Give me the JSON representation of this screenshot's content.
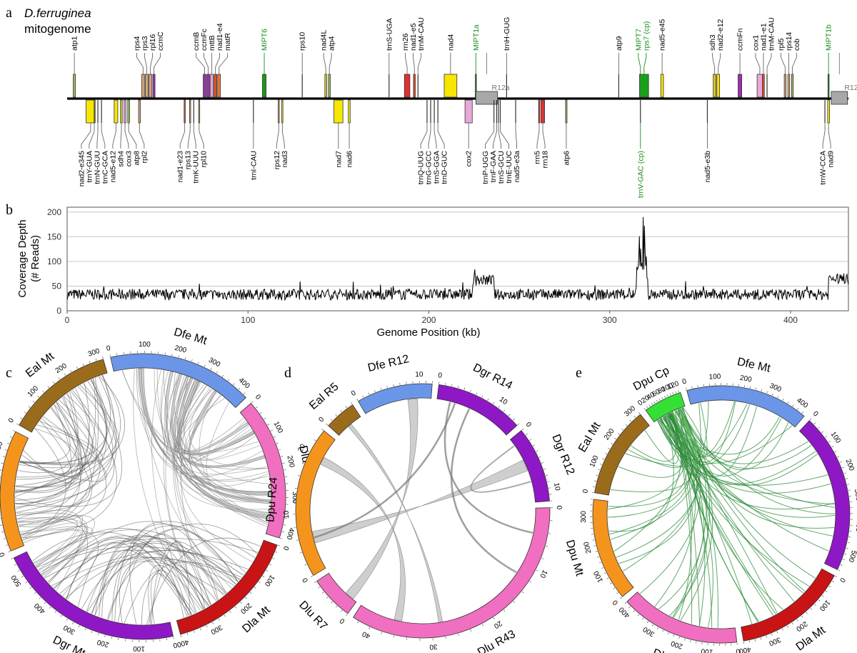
{
  "panels": {
    "a": {
      "label": "a",
      "title_species": "D.ferruginea",
      "title_suffix": "mitogenome",
      "genome_length_kb": 432,
      "features": [
        {
          "name": "atp1",
          "pos": 4,
          "strand": "+",
          "color": "#9bbb59",
          "w": 1.2
        },
        {
          "name": "rps4",
          "pos": 42,
          "strand": "+",
          "color": "#d9a57a",
          "w": 1.5
        },
        {
          "name": "rps3",
          "pos": 44,
          "strand": "+",
          "color": "#d9a57a",
          "w": 1.5
        },
        {
          "name": "rpl16",
          "pos": 46,
          "strand": "+",
          "color": "#d9a57a",
          "w": 1.5
        },
        {
          "name": "ccmC",
          "pos": 48,
          "strand": "+",
          "color": "#9b2fae",
          "w": 1.2
        },
        {
          "name": "ccmB",
          "pos": 76,
          "strand": "+",
          "color": "#9b2fae",
          "w": 1.5
        },
        {
          "name": "ccmFc",
          "pos": 78,
          "strand": "+",
          "color": "#9b2fae",
          "w": 1.5
        },
        {
          "name": "mttB",
          "pos": 80,
          "strand": "+",
          "color": "#e9a9d8",
          "w": 1.5
        },
        {
          "name": "nad1-e4",
          "pos": 82,
          "strand": "+",
          "color": "#e84a1e",
          "w": 1.5
        },
        {
          "name": "matR",
          "pos": 84,
          "strand": "+",
          "color": "#ed7d31",
          "w": 1.5
        },
        {
          "name": "MIPT6",
          "pos": 109,
          "strand": "+",
          "color": "#1a9a1a",
          "w": 2,
          "green": true
        },
        {
          "name": "rps10",
          "pos": 130,
          "strand": "+",
          "color": "#555555",
          "w": 0.2
        },
        {
          "name": "nad4L",
          "pos": 143,
          "strand": "+",
          "color": "#d9c820",
          "w": 1
        },
        {
          "name": "atp4",
          "pos": 145,
          "strand": "+",
          "color": "#9bbb59",
          "w": 1
        },
        {
          "name": "trnS-UGA",
          "pos": 178,
          "strand": "+",
          "color": "#555555",
          "w": 0.2
        },
        {
          "name": "rrn26",
          "pos": 188,
          "strand": "+",
          "color": "#e03030",
          "w": 3
        },
        {
          "name": "nad1-e5",
          "pos": 192,
          "strand": "+",
          "color": "#e84a1e",
          "w": 1
        },
        {
          "name": "trnM-CAU",
          "pos": 194,
          "strand": "+",
          "color": "#555555",
          "w": 0.2
        },
        {
          "name": "nad4",
          "pos": 212,
          "strand": "+",
          "color": "#f7e600",
          "w": 7
        },
        {
          "name": "MIPT1a",
          "pos": 226,
          "strand": "+",
          "color": "#1a9a1a",
          "w": 0.6,
          "green": true
        },
        {
          "name": "R12a",
          "pos": 232,
          "strand": "+",
          "color": "#9a9a9a",
          "w": 12,
          "gray": true
        },
        {
          "name": "trnH-GUG",
          "pos": 243,
          "strand": "+",
          "color": "#555555",
          "w": 0.2
        },
        {
          "name": "atp9",
          "pos": 305,
          "strand": "+",
          "color": "#9bbb59",
          "w": 0.2
        },
        {
          "name": "MIPT7",
          "pos": 317,
          "strand": "+",
          "color": "#1a9a1a",
          "w": 0.5,
          "green": true
        },
        {
          "name": "rps7 (cp)",
          "pos": 319,
          "strand": "+",
          "color": "#1aa01a",
          "w": 5,
          "green": true
        },
        {
          "name": "nad5-e45",
          "pos": 329,
          "strand": "+",
          "color": "#f7e600",
          "w": 1.5
        },
        {
          "name": "sdh3",
          "pos": 358,
          "strand": "+",
          "color": "#d9c820",
          "w": 1.5
        },
        {
          "name": "nad2-e12",
          "pos": 360,
          "strand": "+",
          "color": "#f7e600",
          "w": 1.5
        },
        {
          "name": "ccmFn",
          "pos": 372,
          "strand": "+",
          "color": "#9b2fae",
          "w": 2
        },
        {
          "name": "cox1",
          "pos": 383,
          "strand": "+",
          "color": "#e9a9d8",
          "w": 3
        },
        {
          "name": "nad1-e1",
          "pos": 385,
          "strand": "+",
          "color": "#e84a1e",
          "w": 1
        },
        {
          "name": "trnM-CAU",
          "pos": 387,
          "strand": "+",
          "color": "#555555",
          "w": 0.2
        },
        {
          "name": "rpl5",
          "pos": 397,
          "strand": "+",
          "color": "#d9a57a",
          "w": 1
        },
        {
          "name": "rps14",
          "pos": 399,
          "strand": "+",
          "color": "#d9a57a",
          "w": 1
        },
        {
          "name": "cob",
          "pos": 401,
          "strand": "+",
          "color": "#9bbb59",
          "w": 1
        },
        {
          "name": "MIPT1b",
          "pos": 421,
          "strand": "+",
          "color": "#1a9a1a",
          "w": 0.6,
          "green": true
        },
        {
          "name": "R12b",
          "pos": 427,
          "strand": "+",
          "color": "#9a9a9a",
          "w": 9,
          "gray": true
        },
        {
          "name": "nad2-e345",
          "pos": 13,
          "strand": "-",
          "color": "#f7e600",
          "w": 5
        },
        {
          "name": "trnY-GUA",
          "pos": 15,
          "strand": "-",
          "color": "#555555",
          "w": 0.2
        },
        {
          "name": "trnN-GUU",
          "pos": 17,
          "strand": "-",
          "color": "#555555",
          "w": 0.2
        },
        {
          "name": "trnC-GCA",
          "pos": 19,
          "strand": "-",
          "color": "#555555",
          "w": 0.2
        },
        {
          "name": "nad5-e12",
          "pos": 27,
          "strand": "-",
          "color": "#f7e600",
          "w": 2
        },
        {
          "name": "sdh4",
          "pos": 30,
          "strand": "-",
          "color": "#d9c820",
          "w": 1
        },
        {
          "name": "cox3",
          "pos": 32,
          "strand": "-",
          "color": "#e9a9d8",
          "w": 1
        },
        {
          "name": "atp8",
          "pos": 34,
          "strand": "-",
          "color": "#9bbb59",
          "w": 1
        },
        {
          "name": "rpl2",
          "pos": 40,
          "strand": "-",
          "color": "#d9a57a",
          "w": 1
        },
        {
          "name": "nad1-e23",
          "pos": 65,
          "strand": "-",
          "color": "#e84a1e",
          "w": 0.5
        },
        {
          "name": "rps13",
          "pos": 68,
          "strand": "-",
          "color": "#d9a57a",
          "w": 0.5
        },
        {
          "name": "trnK-UUU",
          "pos": 70,
          "strand": "-",
          "color": "#555555",
          "w": 0.2
        },
        {
          "name": "rpl10",
          "pos": 73,
          "strand": "-",
          "color": "#d9a57a",
          "w": 0.5
        },
        {
          "name": "trnI-CAU",
          "pos": 103,
          "strand": "-",
          "color": "#555555",
          "w": 0.2
        },
        {
          "name": "rps12",
          "pos": 117,
          "strand": "-",
          "color": "#d9a57a",
          "w": 0.5
        },
        {
          "name": "nad3",
          "pos": 119,
          "strand": "-",
          "color": "#f7e600",
          "w": 0.5
        },
        {
          "name": "nad7",
          "pos": 150,
          "strand": "-",
          "color": "#f7e600",
          "w": 5
        },
        {
          "name": "nad6",
          "pos": 156,
          "strand": "-",
          "color": "#f7e600",
          "w": 1
        },
        {
          "name": "trnQ-UUG",
          "pos": 199,
          "strand": "-",
          "color": "#555555",
          "w": 0.2
        },
        {
          "name": "trnG-GCC",
          "pos": 201,
          "strand": "-",
          "color": "#555555",
          "w": 0.2
        },
        {
          "name": "trnS-GGA",
          "pos": 203,
          "strand": "-",
          "color": "#555555",
          "w": 0.2
        },
        {
          "name": "trnD-GUC",
          "pos": 205,
          "strand": "-",
          "color": "#555555",
          "w": 0.2
        },
        {
          "name": "cox2",
          "pos": 222,
          "strand": "-",
          "color": "#e9a9d8",
          "w": 4
        },
        {
          "name": "trnP-UGG",
          "pos": 236,
          "strand": "-",
          "color": "#555555",
          "w": 0.2
        },
        {
          "name": "trnF-GAA",
          "pos": 237.5,
          "strand": "-",
          "color": "#555555",
          "w": 0.2
        },
        {
          "name": "trnS-GCU",
          "pos": 238.5,
          "strand": "-",
          "color": "#555555",
          "w": 0.2
        },
        {
          "name": "trnE-UUC",
          "pos": 239.5,
          "strand": "-",
          "color": "#555555",
          "w": 0.2
        },
        {
          "name": "nad5-e3a",
          "pos": 248,
          "strand": "-",
          "color": "#555555",
          "w": 0.2
        },
        {
          "name": "rrn5",
          "pos": 261,
          "strand": "-",
          "color": "#e03030",
          "w": 0.5
        },
        {
          "name": "rrn18",
          "pos": 263,
          "strand": "-",
          "color": "#e03030",
          "w": 2
        },
        {
          "name": "atp6",
          "pos": 276,
          "strand": "-",
          "color": "#9bbb59",
          "w": 0.8
        },
        {
          "name": "trnV-GAC (cp)",
          "pos": 317,
          "strand": "-",
          "color": "#1a9a1a",
          "w": 0.2,
          "green": true
        },
        {
          "name": "nad5-e3b",
          "pos": 354,
          "strand": "-",
          "color": "#555555",
          "w": 0.2
        },
        {
          "name": "trnW-CCA",
          "pos": 419,
          "strand": "-",
          "color": "#555555",
          "w": 0.2
        },
        {
          "name": "nad9",
          "pos": 421,
          "strand": "-",
          "color": "#f7e600",
          "w": 1
        }
      ]
    },
    "b": {
      "label": "b",
      "ylabel_line1": "Coverage Depth",
      "ylabel_line2": "(# Reads)",
      "xlabel": "Genome Position (kb)",
      "xlim": [
        0,
        432
      ],
      "ylim": [
        0,
        210
      ],
      "xticks": [
        0,
        100,
        200,
        300,
        400
      ],
      "yticks": [
        0,
        50,
        100,
        150,
        200
      ]
    },
    "c": {
      "label": "c",
      "segments": [
        {
          "name": "Eal Mt",
          "len": 320,
          "color": "#9b6b1c",
          "ticks": [
            0,
            100,
            200,
            300
          ]
        },
        {
          "name": "Dfe Mt",
          "len": 432,
          "color": "#6b96e8",
          "ticks": [
            0,
            100,
            200,
            300,
            400
          ]
        },
        {
          "name": "Dlu Mt",
          "len": 420,
          "color": "#f06fc0",
          "ticks": [
            0,
            100,
            200,
            300,
            400
          ]
        },
        {
          "name": "Dla Mt",
          "len": 400,
          "color": "#c81414",
          "ticks": [
            0,
            100,
            200,
            300,
            400
          ]
        },
        {
          "name": "Dgr Mt",
          "len": 560,
          "color": "#8e18c6",
          "ticks": [
            0,
            100,
            200,
            300,
            400,
            500
          ]
        },
        {
          "name": "Dpu Mt",
          "len": 360,
          "color": "#f5941d",
          "ticks": [
            0,
            100,
            200,
            300
          ]
        }
      ]
    },
    "d": {
      "label": "d",
      "segments": [
        {
          "name": "Eal R5",
          "len": 5,
          "color": "#9b6b1c",
          "ticks": [
            0
          ]
        },
        {
          "name": "Dfe R12",
          "len": 12,
          "color": "#6b96e8",
          "ticks": [
            0,
            10
          ]
        },
        {
          "name": "Dgr R14",
          "len": 14,
          "color": "#8e18c6",
          "ticks": [
            0,
            10
          ]
        },
        {
          "name": "Dgr R12",
          "len": 12,
          "color": "#8e18c6",
          "ticks": [
            0,
            10
          ]
        },
        {
          "name": "Dlu R43",
          "len": 43,
          "color": "#f06fc0",
          "ticks": [
            0,
            10,
            20,
            30,
            40
          ]
        },
        {
          "name": "Dlu R7",
          "len": 7,
          "color": "#f06fc0",
          "ticks": [
            0
          ]
        },
        {
          "name": "Dpu R24",
          "len": 24,
          "color": "#f5941d",
          "ticks": [
            0,
            10,
            20
          ]
        }
      ]
    },
    "e": {
      "label": "e",
      "segments": [
        {
          "name": "Dpu Cp",
          "len": 135,
          "color": "#35e035",
          "ticks": [
            0,
            20,
            40,
            60,
            80,
            100,
            120
          ]
        },
        {
          "name": "Dfe Mt",
          "len": 432,
          "color": "#6b96e8",
          "ticks": [
            0,
            100,
            200,
            300,
            400
          ]
        },
        {
          "name": "Dgr Mt",
          "len": 560,
          "color": "#8e18c6",
          "ticks": [
            0,
            100,
            200,
            300,
            400,
            500
          ]
        },
        {
          "name": "Dla Mt",
          "len": 400,
          "color": "#c81414",
          "ticks": [
            0,
            100,
            200,
            300,
            400
          ]
        },
        {
          "name": "Dlu Mt",
          "len": 420,
          "color": "#f06fc0",
          "ticks": [
            0,
            100,
            200,
            300,
            400
          ]
        },
        {
          "name": "Dpu Mt",
          "len": 360,
          "color": "#f5941d",
          "ticks": [
            0,
            100,
            200,
            300
          ]
        },
        {
          "name": "Eal Mt",
          "len": 320,
          "color": "#9b6b1c",
          "ticks": [
            0,
            100,
            200,
            300
          ]
        }
      ]
    }
  }
}
